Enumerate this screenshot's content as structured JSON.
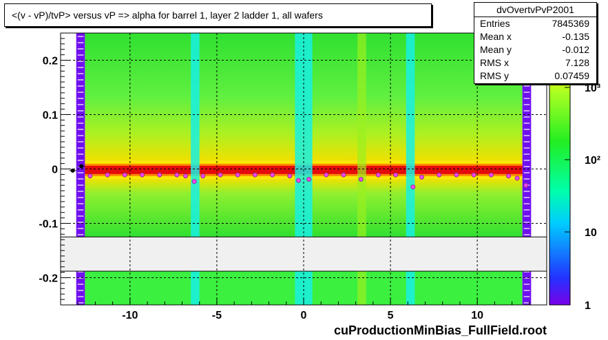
{
  "window": {
    "title": "<(v - vP)/tvP> versus   vP => alpha for barrel 1, layer 2 ladder 1, all wafers",
    "footer": "cuProductionMinBias_FullField.root"
  },
  "stats": {
    "name": "dvOvertvPvP2001",
    "rows": [
      {
        "label": "Entries",
        "value": "7845369"
      },
      {
        "label": "Mean x",
        "value": "-0.135"
      },
      {
        "label": "Mean y",
        "value": "-0.012"
      },
      {
        "label": "RMS x",
        "value": "7.128"
      },
      {
        "label": "RMS y",
        "value": "0.07459"
      }
    ]
  },
  "colors": {
    "background_band": "#3cf040",
    "core_band": "#e40c0c",
    "gap_band": "#f0f0f0",
    "cyan_column": "#18f0e4",
    "purple_column": "#7010f0",
    "profile_marker": "#ff40ff"
  },
  "chart_data": {
    "type": "heatmap",
    "xlim": [
      -14,
      14
    ],
    "ylim": [
      -0.25,
      0.25
    ],
    "x_ticks": [
      -10,
      -5,
      0,
      5,
      10
    ],
    "x_tick_labels": [
      "-10",
      "-5",
      "0",
      "5",
      "10"
    ],
    "y_ticks": [
      -0.2,
      -0.1,
      0,
      0.1,
      0.2
    ],
    "y_tick_labels": [
      "-0.2",
      "-0.1",
      "0",
      "0.1",
      "0.2"
    ],
    "grid": true,
    "log_z": true,
    "z_tick_labels": [
      "1",
      "10",
      "10²",
      "10³"
    ],
    "empty_band_y": [
      -0.188,
      -0.125
    ],
    "cyan_columns_x": [
      [
        -6.5,
        -6.0
      ],
      [
        -0.5,
        0.5
      ],
      [
        5.9,
        6.4
      ]
    ],
    "purple_columns_x": [
      [
        -13.1,
        -12.6
      ],
      [
        12.6,
        13.1
      ]
    ],
    "profile": {
      "x": [
        -13.3,
        -12.8,
        -12.3,
        -11.3,
        -10.3,
        -9.3,
        -8.3,
        -7.3,
        -6.8,
        -6.3,
        -5.8,
        -4.8,
        -3.8,
        -2.8,
        -1.8,
        -0.8,
        -0.3,
        0.3,
        1.3,
        2.3,
        3.3,
        4.3,
        5.3,
        6.3,
        6.8,
        7.8,
        8.8,
        9.8,
        10.8,
        11.8,
        12.3,
        12.8
      ],
      "y": [
        -0.003,
        0.005,
        -0.013,
        -0.011,
        -0.011,
        -0.011,
        -0.011,
        -0.011,
        -0.013,
        -0.023,
        -0.013,
        -0.011,
        -0.011,
        -0.011,
        -0.011,
        -0.013,
        -0.021,
        -0.019,
        -0.011,
        -0.011,
        -0.019,
        -0.011,
        -0.011,
        -0.033,
        -0.015,
        -0.011,
        -0.011,
        -0.011,
        -0.011,
        -0.013,
        -0.017,
        -0.03
      ]
    }
  }
}
